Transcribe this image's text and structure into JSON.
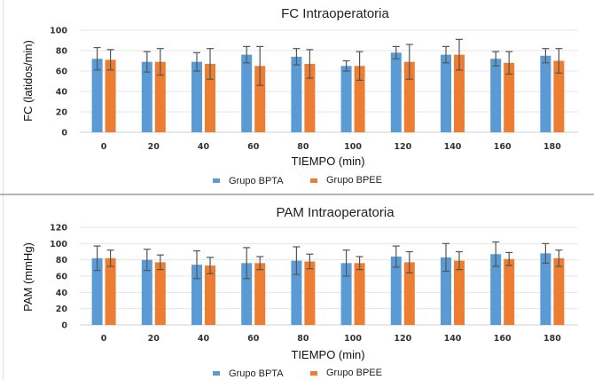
{
  "chart_data": [
    {
      "type": "bar",
      "title": "FC Intraoperatoria",
      "xlabel": "TIEMPO (min)",
      "ylabel": "FC (latidos/min)",
      "ylim": [
        0,
        100
      ],
      "yticks": [
        0,
        20,
        40,
        60,
        80,
        100
      ],
      "grid": true,
      "legend": "bottom",
      "categories": [
        "0",
        "20",
        "40",
        "60",
        "80",
        "100",
        "120",
        "140",
        "160",
        "180"
      ],
      "series": [
        {
          "name": "Grupo BPTA",
          "color": "#5B9BD5",
          "values": [
            72,
            69,
            69,
            76,
            74,
            65,
            78,
            76,
            72,
            75
          ],
          "error": [
            11,
            10,
            9,
            8,
            8,
            5,
            6,
            8,
            7,
            7
          ]
        },
        {
          "name": "Grupo BPEE",
          "color": "#ED7D31",
          "values": [
            71,
            69,
            67,
            65,
            67,
            65,
            69,
            76,
            68,
            70
          ],
          "error": [
            10,
            13,
            15,
            19,
            14,
            14,
            17,
            15,
            11,
            12
          ]
        }
      ]
    },
    {
      "type": "bar",
      "title": "PAM Intraoperatoria",
      "xlabel": "TIEMPO (min)",
      "ylabel": "PAM (mmHg)",
      "ylim": [
        0,
        120
      ],
      "yticks": [
        0,
        20,
        40,
        60,
        80,
        100,
        120
      ],
      "grid": true,
      "legend": "bottom",
      "categories": [
        "0",
        "20",
        "40",
        "60",
        "80",
        "100",
        "120",
        "140",
        "160",
        "180"
      ],
      "series": [
        {
          "name": "Grupo BPTA",
          "color": "#5B9BD5",
          "values": [
            82,
            80,
            74,
            76,
            79,
            76,
            84,
            83,
            87,
            88
          ],
          "error": [
            15,
            13,
            17,
            19,
            17,
            16,
            13,
            17,
            15,
            12
          ]
        },
        {
          "name": "Grupo BPEE",
          "color": "#ED7D31",
          "values": [
            82,
            77,
            73,
            76,
            78,
            76,
            77,
            79,
            81,
            82
          ],
          "error": [
            10,
            9,
            10,
            8,
            9,
            8,
            13,
            11,
            8,
            10
          ]
        }
      ]
    }
  ]
}
